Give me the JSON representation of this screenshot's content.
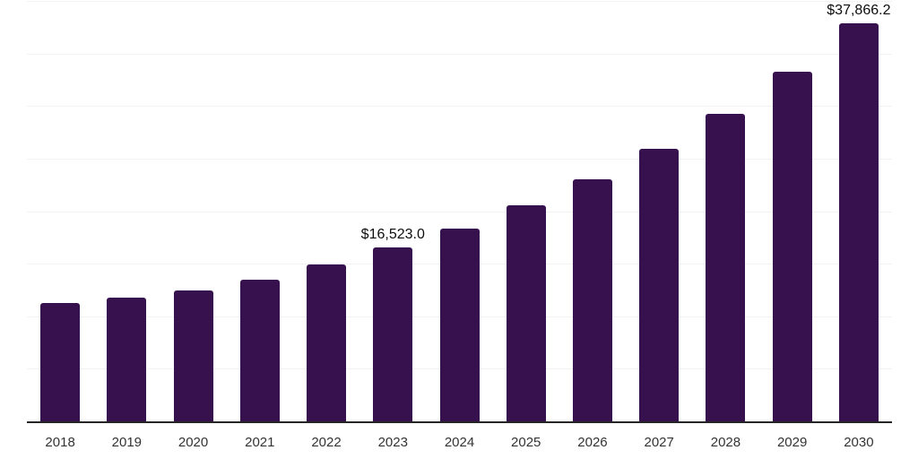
{
  "chart_data": {
    "type": "bar",
    "categories": [
      "2018",
      "2019",
      "2020",
      "2021",
      "2022",
      "2023",
      "2024",
      "2025",
      "2026",
      "2027",
      "2028",
      "2029",
      "2030"
    ],
    "values": [
      11300,
      11750,
      12450,
      13480,
      14900,
      16523.0,
      18330,
      20550,
      23000,
      25900,
      29250,
      33250,
      37866.2
    ],
    "data_labels": [
      {
        "category": "2023",
        "text": "$16,523.0"
      },
      {
        "category": "2030",
        "text": "$37,866.2"
      }
    ],
    "title": "",
    "xlabel": "",
    "ylabel": "",
    "ylim": [
      0,
      40000
    ],
    "gridline_step": 5000,
    "grid": "horizontal",
    "legend": "none",
    "y_tick_labels_visible": false,
    "colors": {
      "bar": "#36114D",
      "axis": "#262626",
      "gridline": "#f2f2f2",
      "tick_label": "#333333",
      "data_label": "#0d0d0d",
      "background": "#ffffff"
    }
  }
}
